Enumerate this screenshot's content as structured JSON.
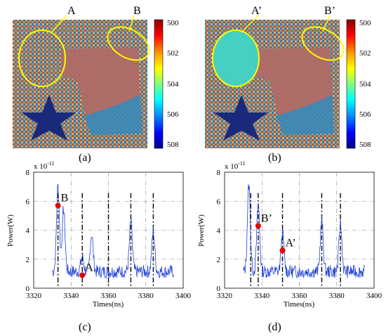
{
  "figure": {
    "colorbar": {
      "ticks": [
        "500",
        "502",
        "504",
        "506",
        "508"
      ],
      "colors": [
        "#8b0000",
        "#ff0000",
        "#ffa500",
        "#ffff00",
        "#7fff7f",
        "#00ffff",
        "#0080ff",
        "#0000ff",
        "#00008b"
      ]
    },
    "panels": {
      "a": {
        "caption": "(a)",
        "callout_left": "A",
        "callout_right": "B",
        "region_color": "#b06a66",
        "star_color": "#1a2a7a",
        "blob_color": "#3a8ab8",
        "ellipse_color": "#ffff00"
      },
      "b": {
        "caption": "(b)",
        "callout_left": "A’",
        "callout_right": "B’",
        "region_color": "#b06a66",
        "star_color": "#1a2a7a",
        "blob_color": "#3a8ab8",
        "cyan_fill": "#3fd6c8",
        "ellipse_color": "#ffff00"
      },
      "c": {
        "caption": "(c)",
        "scale_label": "x 10",
        "scale_exp": "-11",
        "ylabel": "Power(W)",
        "xlabel": "Times(ns)",
        "yticks": [
          "0",
          "2",
          "4",
          "6",
          "8"
        ],
        "xticks": [
          "3320",
          "3340",
          "3360",
          "3380",
          "3400"
        ],
        "markers": [
          {
            "label": "B",
            "t": 3333,
            "p": 5.7
          },
          {
            "label": "A",
            "t": 3346,
            "p": 0.9
          }
        ],
        "dashdot_times": [
          3333,
          3346,
          3360,
          3372,
          3384
        ],
        "line_color": "#1f3fd6",
        "marker_color": "#e60000"
      },
      "d": {
        "caption": "(d)",
        "scale_label": "x 10",
        "scale_exp": "-11",
        "ylabel": "Power(W)",
        "xlabel": "Times(ns)",
        "yticks": [
          "0",
          "2",
          "4",
          "6",
          "8"
        ],
        "xticks": [
          "3320",
          "3340",
          "3360",
          "3380",
          "3400"
        ],
        "markers": [
          {
            "label": "B’",
            "t": 3338,
            "p": 4.3
          },
          {
            "label": "A’",
            "t": 3351,
            "p": 2.6
          }
        ],
        "dashdot_times": [
          3334,
          3338,
          3351,
          3372,
          3382
        ],
        "line_color": "#1f3fd6",
        "marker_color": "#e60000"
      }
    }
  }
}
